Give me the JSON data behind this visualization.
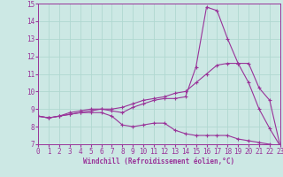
{
  "xlabel": "Windchill (Refroidissement éolien,°C)",
  "xlim": [
    0,
    23
  ],
  "ylim": [
    7,
    15
  ],
  "xticks": [
    0,
    1,
    2,
    3,
    4,
    5,
    6,
    7,
    8,
    9,
    10,
    11,
    12,
    13,
    14,
    15,
    16,
    17,
    18,
    19,
    20,
    21,
    22,
    23
  ],
  "yticks": [
    7,
    8,
    9,
    10,
    11,
    12,
    13,
    14,
    15
  ],
  "background_color": "#cce8e4",
  "grid_color": "#b0d8d0",
  "line_color": "#993399",
  "line1_x": [
    0,
    1,
    2,
    3,
    4,
    5,
    6,
    7,
    8,
    9,
    10,
    11,
    12,
    13,
    14,
    15,
    16,
    17,
    18,
    19,
    20,
    21,
    22,
    23
  ],
  "line1_y": [
    8.6,
    8.5,
    8.6,
    8.7,
    8.8,
    8.8,
    8.8,
    8.6,
    8.1,
    8.0,
    8.1,
    8.2,
    8.2,
    7.8,
    7.6,
    7.5,
    7.5,
    7.5,
    7.5,
    7.3,
    7.2,
    7.1,
    7.0,
    6.9
  ],
  "line2_x": [
    0,
    1,
    2,
    3,
    4,
    5,
    6,
    7,
    8,
    9,
    10,
    11,
    12,
    13,
    14,
    15,
    16,
    17,
    18,
    19,
    20,
    21,
    22,
    23
  ],
  "line2_y": [
    8.6,
    8.5,
    8.6,
    8.8,
    8.9,
    9.0,
    9.0,
    8.9,
    8.8,
    9.1,
    9.3,
    9.5,
    9.6,
    9.6,
    9.7,
    11.4,
    14.8,
    14.6,
    13.0,
    11.6,
    10.5,
    9.0,
    7.9,
    6.9
  ],
  "line3_x": [
    0,
    1,
    2,
    3,
    4,
    5,
    6,
    7,
    8,
    9,
    10,
    11,
    12,
    13,
    14,
    15,
    16,
    17,
    18,
    19,
    20,
    21,
    22,
    23
  ],
  "line3_y": [
    8.6,
    8.5,
    8.6,
    8.7,
    8.8,
    8.9,
    9.0,
    9.0,
    9.1,
    9.3,
    9.5,
    9.6,
    9.7,
    9.9,
    10.0,
    10.5,
    11.0,
    11.5,
    11.6,
    11.6,
    11.6,
    10.2,
    9.5,
    6.9
  ]
}
